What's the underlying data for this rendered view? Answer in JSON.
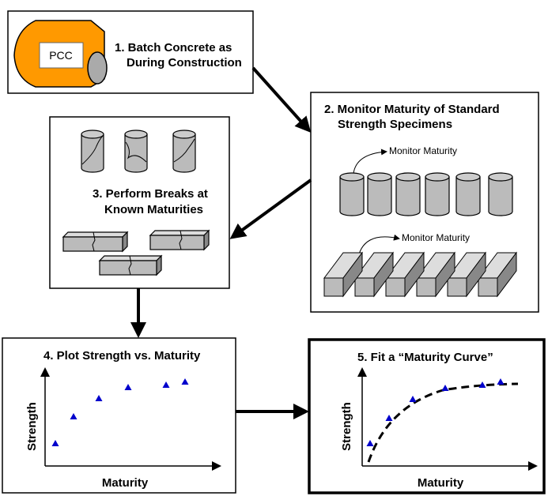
{
  "step1": {
    "label": "PCC",
    "title": [
      "1. Batch Concrete as",
      "During Construction"
    ]
  },
  "step2": {
    "title": [
      "2. Monitor Maturity of Standard",
      "Strength Specimens"
    ],
    "annotations": [
      "Monitor Maturity",
      "Monitor Maturity"
    ]
  },
  "step3": {
    "title": [
      "3. Perform Breaks at",
      "Known Maturities"
    ]
  },
  "step4": {
    "title": "4.  Plot Strength vs. Maturity",
    "y_label": "Strength",
    "x_label": "Maturity"
  },
  "step5": {
    "title": "5.  Fit a “Maturity Curve”",
    "y_label": "Strength",
    "x_label": "Maturity"
  }
}
